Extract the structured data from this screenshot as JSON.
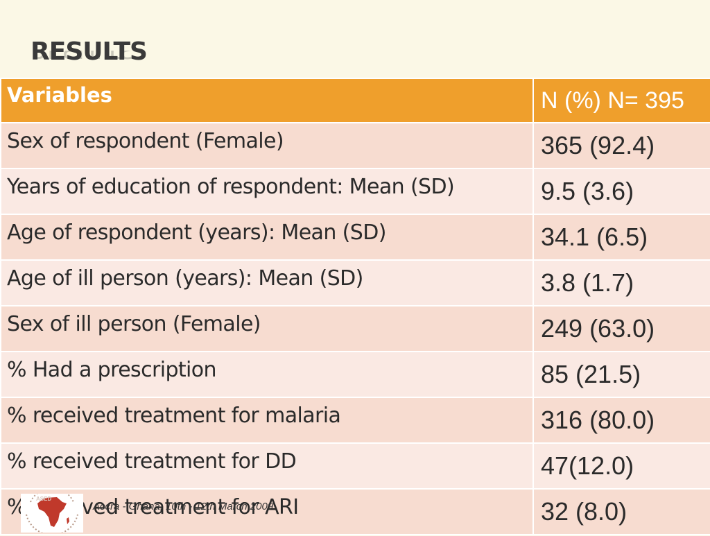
{
  "slide": {
    "title": "RESULTS",
    "footer": "Accra - Ghana, 10th - 12th March 2009"
  },
  "table": {
    "headers": [
      "Variables",
      "N (%) N= 395"
    ],
    "rows": [
      [
        "Sex of respondent (Female)",
        "365 (92.4)"
      ],
      [
        "Years of education of respondent: Mean (SD)",
        "9.5 (3.6)"
      ],
      [
        "Age of respondent (years): Mean (SD)",
        "34.1 (6.5)"
      ],
      [
        "Age of ill person (years): Mean (SD)",
        "3.8 (1.7)"
      ],
      [
        "Sex of ill person (Female)",
        "249 (63.0)"
      ],
      [
        "% Had a prescription",
        "85 (21.5)"
      ],
      [
        "% received treatment for malaria",
        "316 (80.0)"
      ],
      [
        "% received treatment for DD",
        "47(12.0)"
      ],
      [
        "% received treatment for  ARI",
        "32 (8.0)"
      ]
    ]
  },
  "colors": {
    "background": "#fbf8e6",
    "header": "#ef9f2c",
    "row_odd": "#f7dcd0",
    "row_even": "#fae9e3",
    "logo_map": "#c0392b"
  },
  "icons": {
    "logo": "conference-logo-africa-map"
  }
}
